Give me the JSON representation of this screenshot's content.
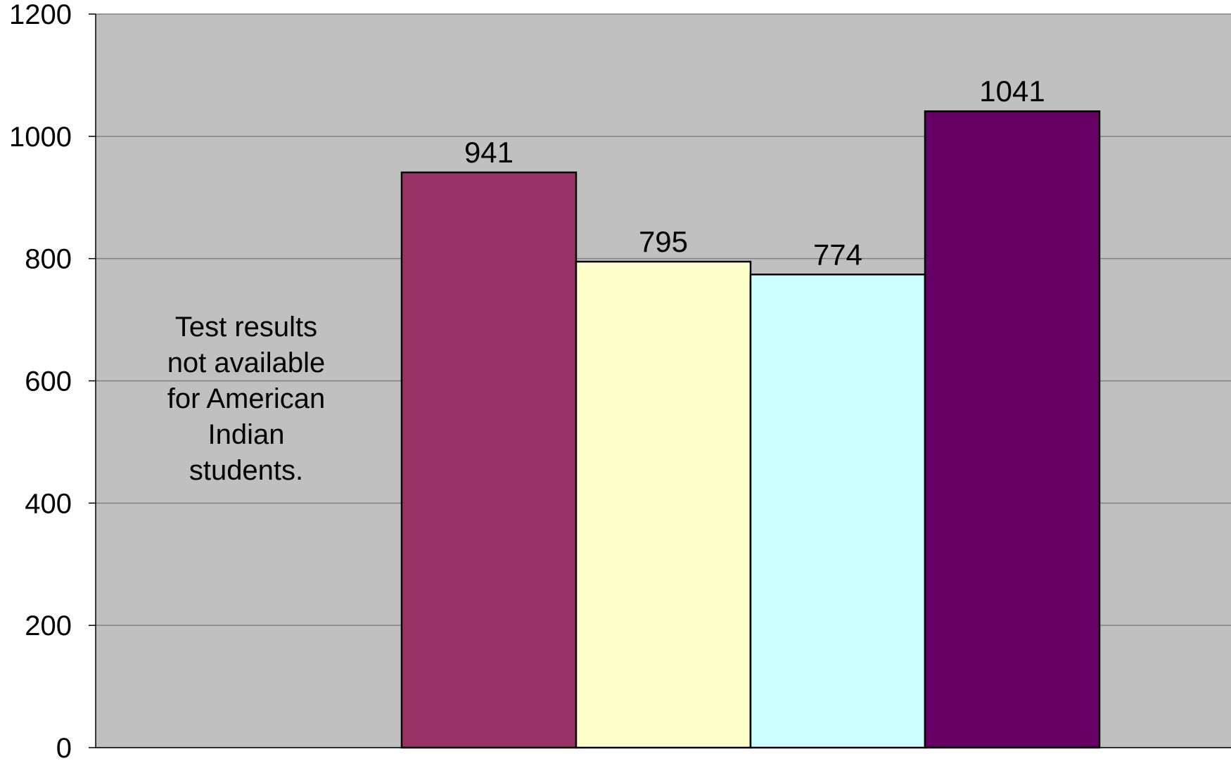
{
  "chart_data": {
    "type": "bar",
    "categories": [
      "",
      "",
      "",
      "",
      ""
    ],
    "values": [
      null,
      941,
      795,
      774,
      1041
    ],
    "data_labels": [
      "",
      "941",
      "795",
      "774",
      "1041"
    ],
    "bar_colors": [
      "",
      "#993366",
      "#FFFFCC",
      "#CCFFFF",
      "#660066"
    ],
    "ylim": [
      0,
      1200
    ],
    "yticks": [
      0,
      200,
      400,
      600,
      800,
      1000,
      1200
    ],
    "ytick_labels": [
      "0",
      "200",
      "400",
      "600",
      "800",
      "1000",
      "1200"
    ],
    "grid": true,
    "plot_background": "#C0C0C0",
    "gridline_color": "#808080",
    "title": "",
    "xlabel": "",
    "ylabel": "",
    "annotation": {
      "lines": [
        "Test results",
        "not available",
        "for American",
        "Indian",
        "students."
      ]
    }
  }
}
